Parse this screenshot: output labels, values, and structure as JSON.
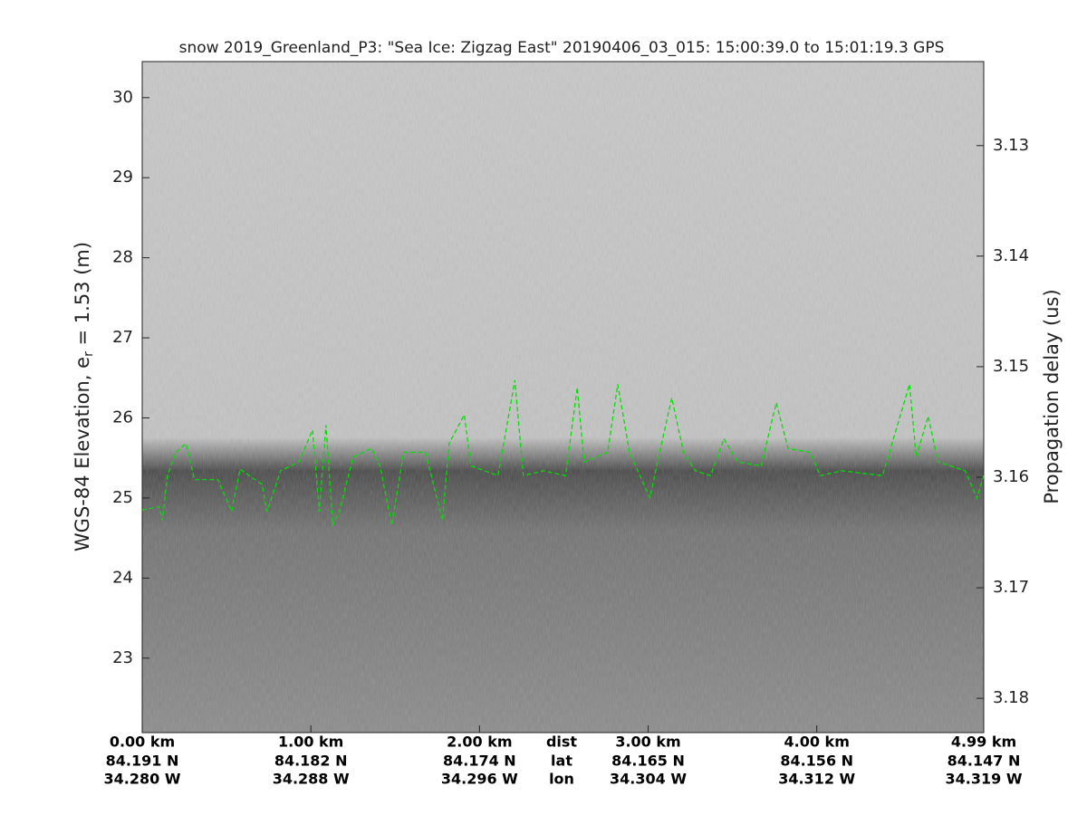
{
  "chart_data": {
    "type": "line",
    "title": "snow 2019_Greenland_P3: \"Sea Ice: Zigzag East\"  20190406_03_015: 15:00:39.0 to 15:01:19.3 GPS",
    "y_label": {
      "text": "WGS-84 Elevation, e",
      "subscript": "r",
      "suffix": " = 1.53 (m)"
    },
    "y2_label": "Propagation delay (us)",
    "xlim": [
      0,
      4.99
    ],
    "xticks": [
      {
        "value": 0,
        "label": "0.00 km"
      },
      {
        "value": 1,
        "label": "1.00 km"
      },
      {
        "value": 2,
        "label": "2.00 km"
      },
      {
        "value": 3,
        "label": "3.00 km"
      },
      {
        "value": 4,
        "label": "4.00 km"
      },
      {
        "value": 4.99,
        "label": "4.99 km"
      }
    ],
    "x_lat_labels": [
      "84.191 N",
      "84.182 N",
      "84.174 N",
      "84.165 N",
      "84.156 N",
      "84.147 N"
    ],
    "x_lon_labels": [
      "34.280 W",
      "34.288 W",
      "34.296 W",
      "34.304 W",
      "34.312 W",
      "34.319 W"
    ],
    "x_row_labels": [
      "dist",
      "lat",
      "lon"
    ],
    "ylim": [
      22.07,
      30.45
    ],
    "yticks": [
      23,
      24,
      25,
      26,
      27,
      28,
      29,
      30
    ],
    "y2lim": [
      3.1831,
      3.1224
    ],
    "y2ticks": [
      3.13,
      3.14,
      3.15,
      3.16,
      3.17,
      3.18
    ],
    "x": [
      0,
      0.1,
      0.12,
      0.15,
      0.2,
      0.26,
      0.31,
      0.45,
      0.53,
      0.58,
      0.71,
      0.74,
      0.82,
      0.93,
      1.01,
      1.05,
      1.09,
      1.13,
      1.17,
      1.25,
      1.36,
      1.41,
      1.48,
      1.55,
      1.68,
      1.78,
      1.82,
      1.91,
      1.95,
      2.11,
      2.21,
      2.26,
      2.38,
      2.51,
      2.58,
      2.62,
      2.76,
      2.82,
      2.89,
      3.01,
      3.08,
      3.14,
      3.21,
      3.28,
      3.37,
      3.45,
      3.53,
      3.67,
      3.76,
      3.83,
      3.96,
      4.02,
      4.15,
      4.39,
      4.55,
      4.59,
      4.66,
      4.72,
      4.88,
      4.95,
      4.99
    ],
    "series": [
      {
        "color": "#00e000",
        "values": [
          24.85,
          24.89,
          24.72,
          25.28,
          25.57,
          25.68,
          25.23,
          25.23,
          24.83,
          25.36,
          25.17,
          24.83,
          25.34,
          25.45,
          25.85,
          24.83,
          25.91,
          24.66,
          24.83,
          25.51,
          25.62,
          25.4,
          24.66,
          25.57,
          25.57,
          24.72,
          25.68,
          26.04,
          25.4,
          25.28,
          26.47,
          25.28,
          25.34,
          25.28,
          26.38,
          25.45,
          25.57,
          26.42,
          25.57,
          25.0,
          25.68,
          26.25,
          25.57,
          25.34,
          25.28,
          25.74,
          25.45,
          25.4,
          26.19,
          25.62,
          25.57,
          25.28,
          25.34,
          25.28,
          26.42,
          25.51,
          26.02,
          25.45,
          25.34,
          25.0,
          25.28
        ]
      }
    ]
  }
}
